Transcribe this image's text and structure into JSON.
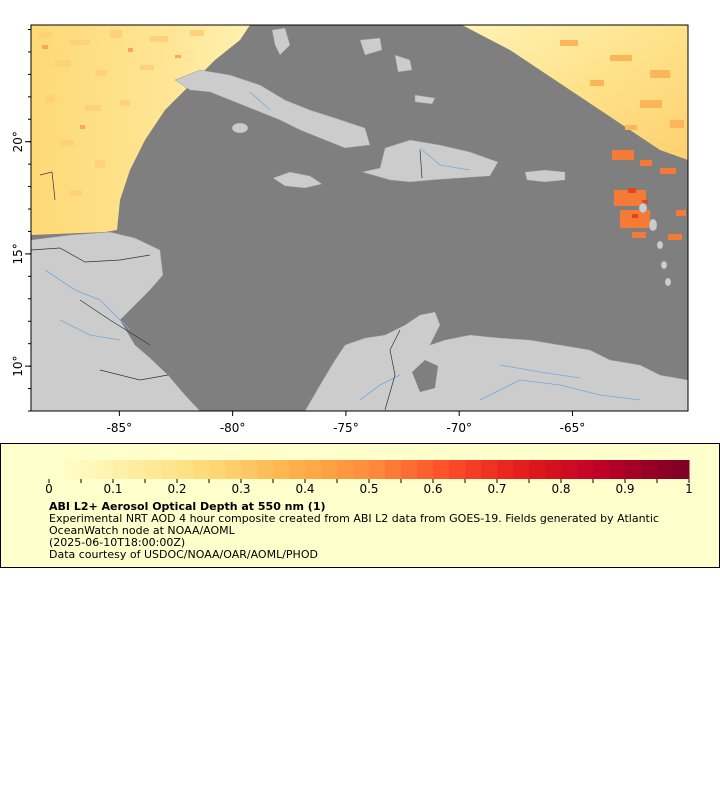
{
  "map": {
    "x_ticks": [
      {
        "lon": -85,
        "label": "-85°"
      },
      {
        "lon": -80,
        "label": "-80°"
      },
      {
        "lon": -75,
        "label": "-75°"
      },
      {
        "lon": -70,
        "label": "-70°"
      },
      {
        "lon": -65,
        "label": "-65°"
      }
    ],
    "y_ticks": [
      {
        "lat": 20,
        "label": "20°"
      },
      {
        "lat": 15,
        "label": "15°"
      },
      {
        "lat": 10,
        "label": "10°"
      }
    ],
    "lon_range": [
      -88.9,
      -59.9
    ],
    "lat_range": [
      8.0,
      25.2
    ],
    "colors": {
      "ocean": "#7f7f7f",
      "land": "#cccccc",
      "rivers": "#7aa8d8",
      "borders": "#333333"
    }
  },
  "legend": {
    "title": "ABI L2+ Aerosol Optical Depth at 550 nm (1)",
    "description": "Experimental NRT AOD 4 hour composite created from ABI L2 data from GOES-19. Fields generated by Atlantic OceanWatch node at NOAA/AOML",
    "timestamp": "(2025-06-10T18:00:00Z)",
    "credit": "Data courtesy of USDOC/NOAA/OAR/AOML/PHOD",
    "colorbar": {
      "min": 0,
      "max": 1,
      "labels": [
        "0",
        "0.1",
        "0.2",
        "0.3",
        "0.4",
        "0.5",
        "0.6",
        "0.7",
        "0.8",
        "0.9",
        "1"
      ],
      "colors": [
        "#ffffcc",
        "#ffeda0",
        "#fed976",
        "#feb24c",
        "#fd8d3c",
        "#fc4e2a",
        "#e31a1c",
        "#bd0026",
        "#800026"
      ]
    }
  }
}
